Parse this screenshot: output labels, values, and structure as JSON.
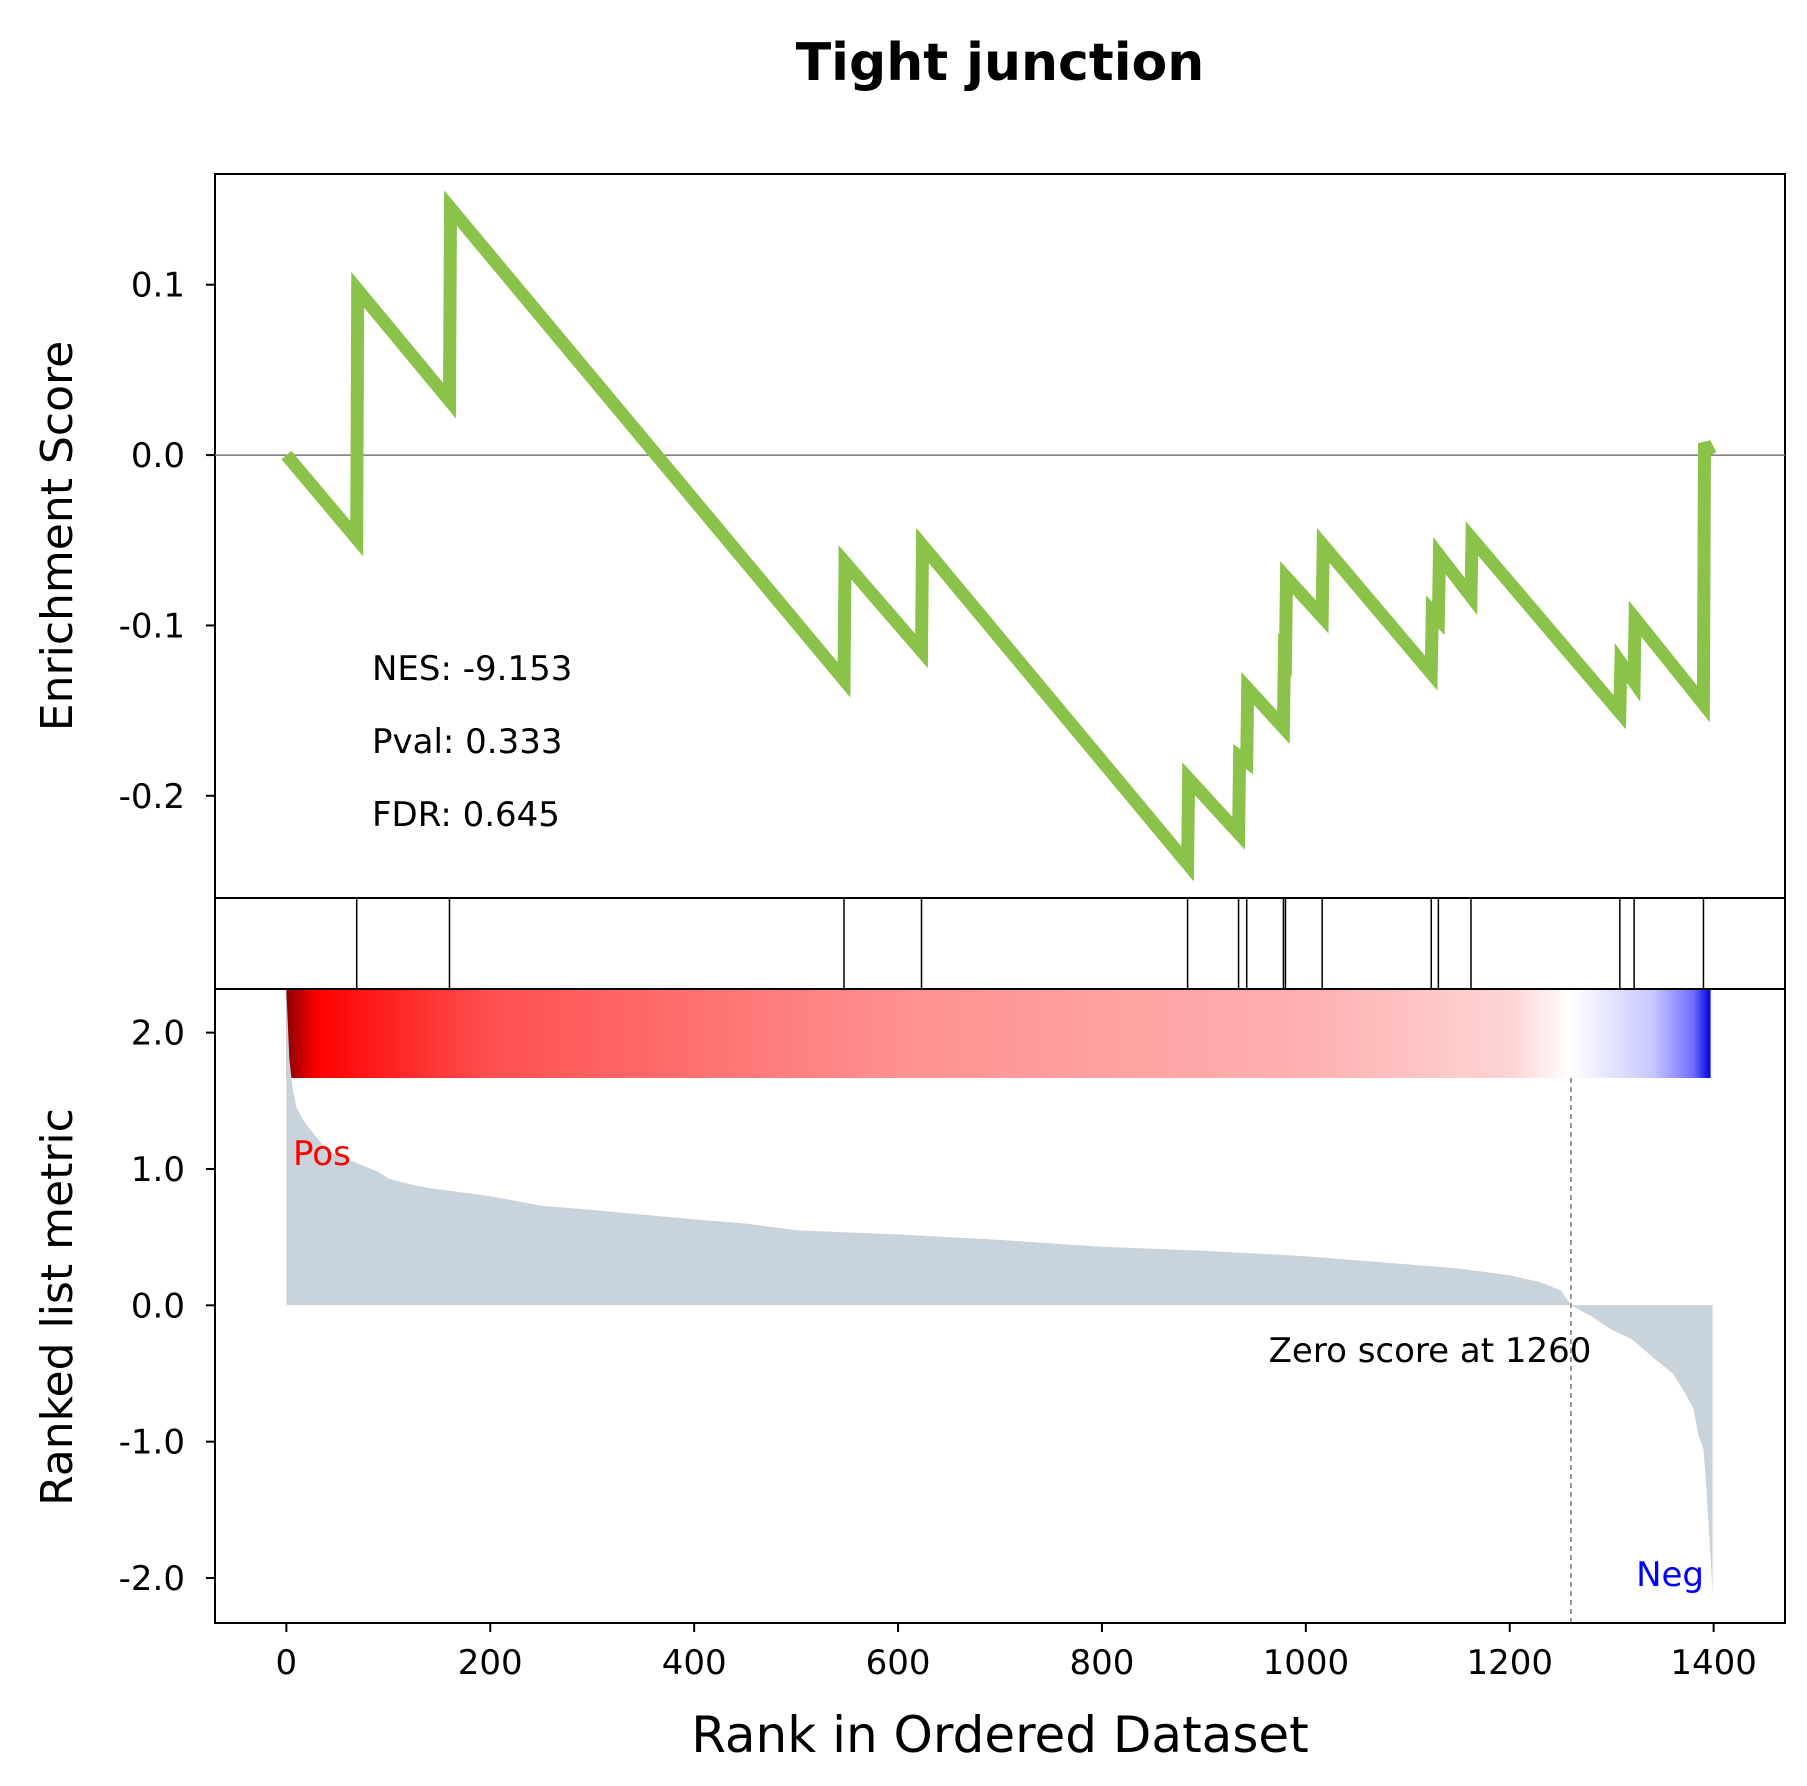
{
  "title": "Tight junction",
  "stats": {
    "nes": "NES: -9.153",
    "pval": "Pval: 0.333",
    "fdr": "FDR: 0.645"
  },
  "colors": {
    "es_line": "#8bc34a",
    "metric_fill": "#c9d3dc",
    "pos_label": "#ff0000",
    "neg_label": "#0000ff"
  },
  "chart_data": [
    {
      "type": "line",
      "title": "Tight junction",
      "xlabel": "",
      "ylabel": "Enrichment Score",
      "xlim": [
        -70,
        1470
      ],
      "ylim": [
        -0.26,
        0.165
      ],
      "yticks": [
        0.1,
        0.0,
        -0.1,
        -0.2
      ],
      "ytick_labels": [
        "0.1",
        "0.0",
        "-0.1",
        "-0.2"
      ],
      "zero_line": true,
      "x": [
        0,
        69,
        70,
        160,
        161,
        547,
        548,
        623,
        624,
        884,
        885,
        934,
        935,
        942,
        943,
        978,
        979,
        980,
        981,
        1016,
        1017,
        1123,
        1124,
        1130,
        1131,
        1162,
        1163,
        1308,
        1309,
        1322,
        1323,
        1390,
        1391,
        1397
      ],
      "y": [
        0.0,
        -0.049,
        0.097,
        0.032,
        0.145,
        -0.132,
        -0.063,
        -0.115,
        -0.053,
        -0.24,
        -0.19,
        -0.222,
        -0.177,
        -0.18,
        -0.137,
        -0.16,
        -0.117,
        -0.118,
        -0.072,
        -0.095,
        -0.053,
        -0.128,
        -0.092,
        -0.096,
        -0.059,
        -0.083,
        -0.049,
        -0.151,
        -0.122,
        -0.133,
        -0.096,
        -0.146,
        0.007,
        0.0
      ]
    },
    {
      "type": "barcode",
      "hits": [
        69,
        160,
        547,
        623,
        884,
        934,
        942,
        978,
        980,
        1016,
        1123,
        1130,
        1162,
        1308,
        1322,
        1390
      ]
    },
    {
      "type": "area",
      "xlabel": "Rank in Ordered Dataset",
      "ylabel": "Ranked list metric",
      "xlim": [
        -70,
        1470
      ],
      "ylim": [
        -2.33,
        2.32
      ],
      "xticks": [
        0,
        200,
        400,
        600,
        800,
        1000,
        1200,
        1400
      ],
      "xtick_labels": [
        "0",
        "200",
        "400",
        "600",
        "800",
        "1000",
        "1200",
        "1400"
      ],
      "yticks": [
        2.0,
        1.0,
        0.0,
        -1.0,
        -2.0
      ],
      "ytick_labels": [
        "2.0",
        "1.0",
        "0.0",
        "-1.0",
        "-2.0"
      ],
      "x": [
        0,
        3,
        6,
        10,
        15,
        20,
        30,
        40,
        50,
        60,
        70,
        80,
        90,
        100,
        120,
        140,
        160,
        200,
        250,
        300,
        400,
        450,
        500,
        600,
        700,
        800,
        900,
        1000,
        1100,
        1150,
        1200,
        1230,
        1250,
        1260,
        1280,
        1300,
        1320,
        1340,
        1360,
        1370,
        1380,
        1385,
        1390,
        1393,
        1395,
        1397,
        1399
      ],
      "values": [
        2.3,
        1.8,
        1.6,
        1.45,
        1.38,
        1.32,
        1.23,
        1.14,
        1.1,
        1.07,
        1.04,
        1.01,
        0.98,
        0.93,
        0.89,
        0.86,
        0.84,
        0.8,
        0.73,
        0.7,
        0.63,
        0.6,
        0.55,
        0.52,
        0.48,
        0.43,
        0.4,
        0.36,
        0.3,
        0.27,
        0.22,
        0.17,
        0.11,
        0.0,
        -0.08,
        -0.18,
        -0.25,
        -0.38,
        -0.5,
        -0.62,
        -0.75,
        -0.95,
        -1.05,
        -1.35,
        -1.6,
        -1.85,
        -2.13
      ],
      "zero_crossing": 1260,
      "zero_label": "Zero score at 1260",
      "pos_label": "Pos",
      "neg_label": "Neg",
      "colorbar": {
        "range": [
          0,
          1397
        ],
        "stops": [
          {
            "x": 0,
            "color": "#8b0000"
          },
          {
            "x": 30,
            "color": "#ff0000"
          },
          {
            "x": 200,
            "color": "#ff5050"
          },
          {
            "x": 600,
            "color": "#ff9090"
          },
          {
            "x": 1000,
            "color": "#ffb0b0"
          },
          {
            "x": 1200,
            "color": "#ffd4d4"
          },
          {
            "x": 1260,
            "color": "#ffffff"
          },
          {
            "x": 1340,
            "color": "#c8c8ff"
          },
          {
            "x": 1380,
            "color": "#7070ff"
          },
          {
            "x": 1397,
            "color": "#0000e0"
          }
        ]
      }
    }
  ]
}
